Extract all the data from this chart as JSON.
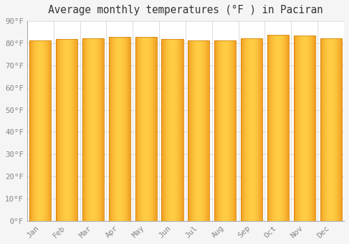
{
  "title": "Average monthly temperatures (°F ) in Paciran",
  "months": [
    "Jan",
    "Feb",
    "Mar",
    "Apr",
    "May",
    "Jun",
    "Jul",
    "Aug",
    "Sep",
    "Oct",
    "Nov",
    "Dec"
  ],
  "values": [
    81.1,
    81.9,
    82.2,
    82.9,
    82.9,
    81.9,
    81.1,
    81.3,
    82.2,
    83.8,
    83.5,
    82.2
  ],
  "bar_color_left": "#E8820A",
  "bar_color_center": "#FFCC44",
  "bar_color_right": "#E8820A",
  "ylim": [
    0,
    90
  ],
  "ytick_step": 10,
  "background_color": "#f5f5f5",
  "plot_bg_color": "#ffffff",
  "grid_color": "#dddddd",
  "title_fontsize": 10.5,
  "tick_fontsize": 8,
  "font_family": "monospace",
  "bar_width": 0.82
}
